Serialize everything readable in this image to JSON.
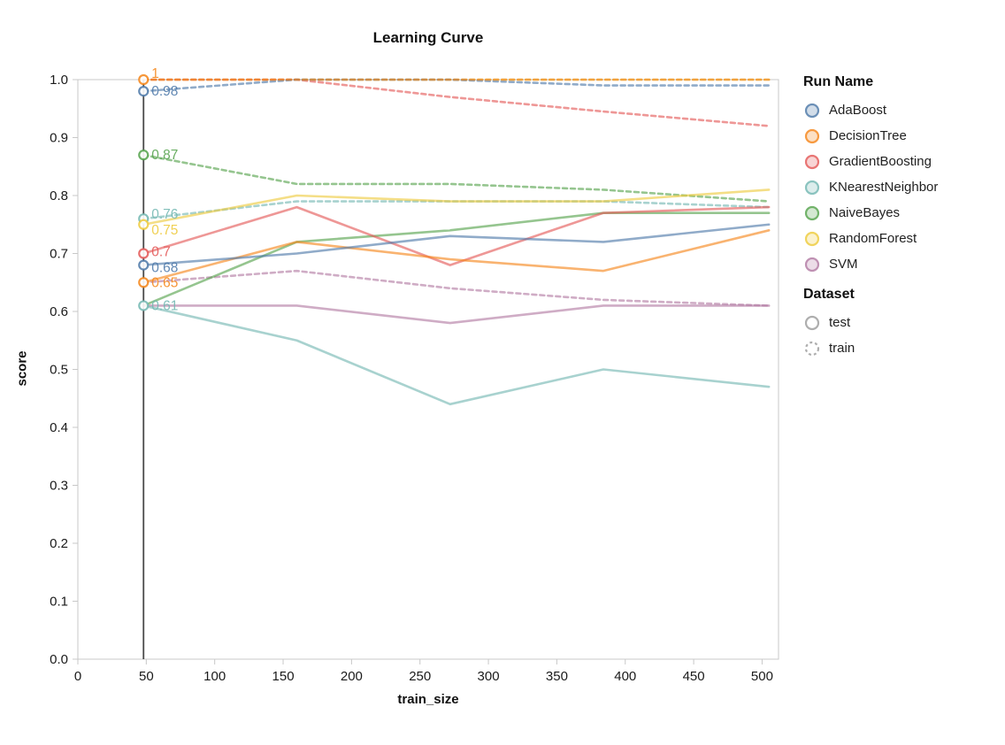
{
  "title": "Learning Curve",
  "axes": {
    "x": {
      "label": "train_size",
      "domain": [
        0,
        512
      ],
      "ticks": [
        0,
        50,
        100,
        150,
        200,
        250,
        300,
        350,
        400,
        450,
        500
      ]
    },
    "y": {
      "label": "score",
      "domain": [
        0,
        1
      ],
      "ticks": [
        0,
        0.1,
        0.2,
        0.3,
        0.4,
        0.5,
        0.6,
        0.7,
        0.8,
        0.9,
        1.0
      ],
      "tick_labels": [
        "0.0",
        "0.1",
        "0.2",
        "0.3",
        "0.4",
        "0.5",
        "0.6",
        "0.7",
        "0.8",
        "0.9",
        "1.0"
      ]
    }
  },
  "legend": {
    "run_name_title": "Run Name",
    "runs": [
      {
        "label": "AdaBoost",
        "color": "#4c78a8"
      },
      {
        "label": "DecisionTree",
        "color": "#f58518"
      },
      {
        "label": "GradientBoosting",
        "color": "#e45756"
      },
      {
        "label": "KNearestNeighbor",
        "color": "#72b7b2"
      },
      {
        "label": "NaiveBayes",
        "color": "#54a24b"
      },
      {
        "label": "RandomForest",
        "color": "#eeca3b"
      },
      {
        "label": "SVM",
        "color": "#b279a2"
      }
    ],
    "dataset_title": "Dataset",
    "datasets": [
      {
        "label": "test",
        "dashed": false
      },
      {
        "label": "train",
        "dashed": true
      }
    ]
  },
  "chart_data": {
    "type": "line",
    "title": "Learning Curve",
    "xlabel": "train_size",
    "ylabel": "score",
    "xlim": [
      0,
      512
    ],
    "ylim": [
      0,
      1
    ],
    "grid": false,
    "legend_position": "right",
    "x": [
      48,
      160,
      272,
      384,
      505
    ],
    "series": [
      {
        "name": "RandomForest",
        "dataset": "train",
        "color": "#eeca3b",
        "dashed": true,
        "values": [
          1.0,
          1.0,
          1.0,
          1.0,
          1.0
        ]
      },
      {
        "name": "GradientBoosting",
        "dataset": "train",
        "color": "#e45756",
        "dashed": true,
        "values": [
          1.0,
          1.0,
          0.97,
          0.945,
          0.92
        ]
      },
      {
        "name": "AdaBoost",
        "dataset": "train",
        "color": "#4c78a8",
        "dashed": true,
        "values": [
          0.98,
          1.0,
          1.0,
          0.99,
          0.99
        ]
      },
      {
        "name": "NaiveBayes",
        "dataset": "train",
        "color": "#54a24b",
        "dashed": true,
        "values": [
          0.87,
          0.82,
          0.82,
          0.81,
          0.79
        ]
      },
      {
        "name": "KNearestNeighbor",
        "dataset": "train",
        "color": "#72b7b2",
        "dashed": true,
        "values": [
          0.76,
          0.79,
          0.79,
          0.79,
          0.78
        ]
      },
      {
        "name": "SVM",
        "dataset": "train",
        "color": "#b279a2",
        "dashed": true,
        "values": [
          0.65,
          0.67,
          0.64,
          0.62,
          0.61
        ]
      },
      {
        "name": "DecisionTree",
        "dataset": "train",
        "color": "#f58518",
        "dashed": true,
        "values": [
          1.0,
          1.0,
          1.0,
          1.0,
          1.0
        ]
      },
      {
        "name": "SVM",
        "dataset": "test",
        "color": "#b279a2",
        "dashed": false,
        "values": [
          0.61,
          0.61,
          0.58,
          0.61,
          0.61
        ]
      },
      {
        "name": "KNearestNeighbor",
        "dataset": "test",
        "color": "#72b7b2",
        "dashed": false,
        "values": [
          0.61,
          0.55,
          0.44,
          0.5,
          0.47
        ]
      },
      {
        "name": "NaiveBayes",
        "dataset": "test",
        "color": "#54a24b",
        "dashed": false,
        "values": [
          0.61,
          0.72,
          0.74,
          0.77,
          0.77
        ]
      },
      {
        "name": "GradientBoosting",
        "dataset": "test",
        "color": "#e45756",
        "dashed": false,
        "values": [
          0.7,
          0.78,
          0.68,
          0.77,
          0.78
        ]
      },
      {
        "name": "RandomForest",
        "dataset": "test",
        "color": "#eeca3b",
        "dashed": false,
        "values": [
          0.75,
          0.8,
          0.79,
          0.79,
          0.81
        ]
      },
      {
        "name": "DecisionTree",
        "dataset": "test",
        "color": "#f58518",
        "dashed": false,
        "values": [
          0.65,
          0.72,
          0.69,
          0.67,
          0.74
        ]
      },
      {
        "name": "AdaBoost",
        "dataset": "test",
        "color": "#4c78a8",
        "dashed": false,
        "values": [
          0.68,
          0.7,
          0.73,
          0.72,
          0.75
        ]
      }
    ],
    "rule": {
      "x": 48,
      "labels": [
        {
          "text": "1",
          "value": 1.0,
          "color": "#f58518",
          "dy": -7
        },
        {
          "text": "0.98",
          "value": 0.98,
          "color": "#4c78a8",
          "dy": 0
        },
        {
          "text": "0.87",
          "value": 0.87,
          "color": "#54a24b",
          "dy": 0
        },
        {
          "text": "0.76",
          "value": 0.76,
          "color": "#72b7b2",
          "dy": -5
        },
        {
          "text": "0.75",
          "value": 0.75,
          "color": "#eeca3b",
          "dy": 6
        },
        {
          "text": "0.7",
          "value": 0.7,
          "color": "#e45756",
          "dy": -2
        },
        {
          "text": "0.68",
          "value": 0.68,
          "color": "#4c78a8",
          "dy": 3
        },
        {
          "text": "0.65",
          "value": 0.65,
          "color": "#f58518",
          "dy": 0
        },
        {
          "text": "0.61",
          "value": 0.61,
          "color": "#72b7b2",
          "dy": 0
        }
      ]
    }
  }
}
